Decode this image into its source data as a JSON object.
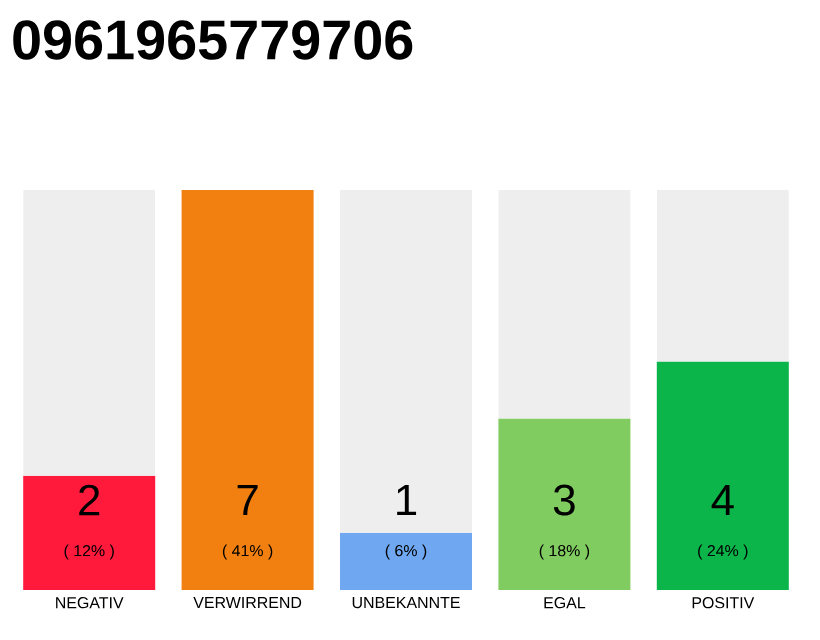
{
  "chart_data": {
    "type": "bar",
    "title": "0961965779706",
    "stacked": true,
    "categories": [
      "NEGATIV",
      "VERWIRREND",
      "UNBEKANNTE",
      "EGAL",
      "POSITIV"
    ],
    "series": [
      {
        "colors": [
          "#ff1a3c",
          "#f28010",
          "#6fa8f0",
          "#80cc60",
          "#0bb54a"
        ],
        "values": [
          2,
          7,
          1,
          3,
          4
        ],
        "value_labels": [
          "2",
          "7",
          "1",
          "3",
          "4"
        ]
      },
      {
        "color": "#eeeeee",
        "values": [
          5,
          0,
          6,
          4,
          3
        ]
      }
    ],
    "annotations": [
      "( 12% )",
      "( 41% )",
      "( 6% )",
      "( 18% )",
      "( 24% )"
    ]
  }
}
